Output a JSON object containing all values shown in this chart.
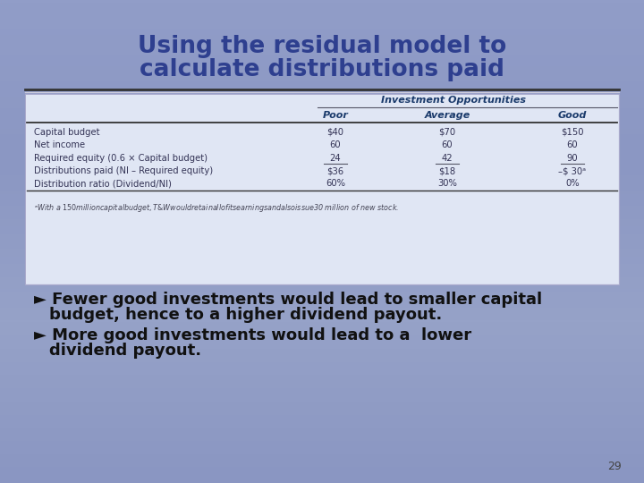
{
  "title_line1": "Using the residual model to",
  "title_line2": "calculate distributions paid",
  "title_color": "#2E3F8F",
  "bg_color": "#8B96C8",
  "bg_gradient_top": "#9198C4",
  "bg_gradient_bottom": "#8E9FC0",
  "table_bg": "#E2E8F4",
  "table_border": "#BBBBCC",
  "divider_dark": "#444444",
  "divider_light": "#CCCCDD",
  "table_header_group": "Investment Opportunities",
  "table_col_headers": [
    "Poor",
    "Average",
    "Good"
  ],
  "table_row_labels": [
    "Capital budget",
    "Net income",
    "Required equity (0.6 × Capital budget)",
    "Distributions paid (NI – Required equity)",
    "Distribution ratio (Dividend/NI)"
  ],
  "table_data": [
    [
      "$40",
      "$70",
      "$150"
    ],
    [
      "60",
      "60",
      "60"
    ],
    [
      "24",
      "42",
      "90"
    ],
    [
      "$36",
      "$18",
      "–$ 30ᵃ"
    ],
    [
      "60%",
      "30%",
      "0%"
    ]
  ],
  "footnote": "ᵃWith a $150 million capital budget, T&W would retain all of its earnings and also issue $30 million of new stock.",
  "bullet1_line1": "► Fewer good investments would lead to smaller capital",
  "bullet1_line2": "budget, hence to a higher dividend payout.",
  "bullet2_line1": "► More good investments would lead to a  lower",
  "bullet2_line2": "dividend payout.",
  "page_number": "29",
  "bullet_color": "#111111",
  "table_text_color": "#333355",
  "table_header_color": "#1A3A6B",
  "footnote_color": "#444455"
}
